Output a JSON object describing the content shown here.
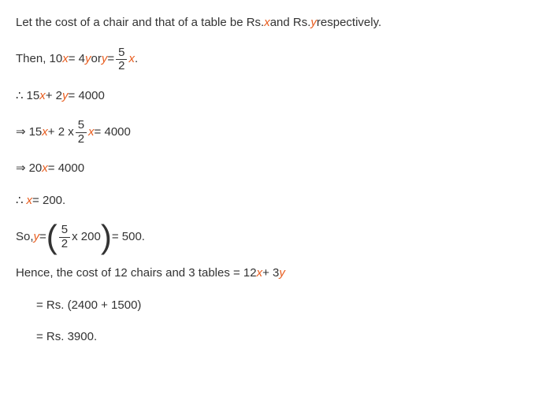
{
  "colors": {
    "text": "#333333",
    "variable": "#e85d1f",
    "background": "#ffffff"
  },
  "typography": {
    "font_family": "Arial, Helvetica, sans-serif",
    "font_size_pt": 11,
    "line_height": 1.5
  },
  "variables": {
    "x": "x",
    "y": "y"
  },
  "line1": {
    "t1": "Let the cost of a chair and that of a table be Rs. ",
    "t2": "  and Rs. ",
    "t3": "  respectively."
  },
  "line2": {
    "t1": "Then, 10",
    "t2": "  =  4",
    "t3": "    or   ",
    "t4": "  =  ",
    "frac_num": "5",
    "frac_den": "2",
    "t5": " ."
  },
  "line3": {
    "sym": "∴",
    "t1": "  15",
    "t2": "  +  2",
    "t3": "  =  4000"
  },
  "line4": {
    "sym": "⇒",
    "t1": " 15",
    "t2": "  +  2 x ",
    "frac_num": "5",
    "frac_den": "2",
    "t3": "  =  4000"
  },
  "line5": {
    "sym": "⇒",
    "t1": " 20",
    "t2": "  =  4000"
  },
  "line6": {
    "sym": "∴",
    "t1": "  ",
    "t2": "  =  200."
  },
  "line7": {
    "t1": "So, ",
    "t2": "  =  ",
    "lparen": "(",
    "frac_num": "5",
    "frac_den": "2",
    "t3": " x 200",
    "rparen": ")",
    "t4": "  =  500."
  },
  "line8": {
    "t1": "Hence, the cost of 12 chairs and 3 tables =  12",
    "t2": "  +  3"
  },
  "line9": {
    "t1": "=  Rs. (2400 + 1500)"
  },
  "line10": {
    "t1": "=  Rs. 3900."
  }
}
